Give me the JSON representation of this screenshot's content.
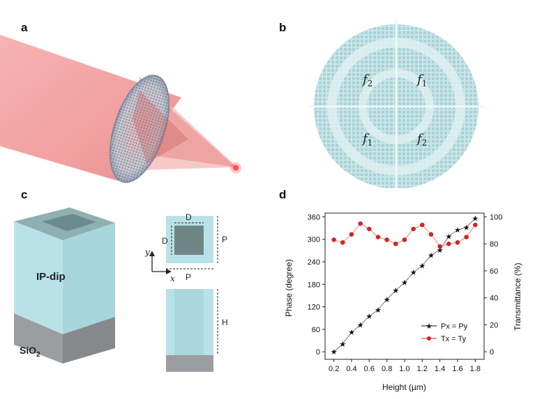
{
  "panels": {
    "a": "a",
    "b": "b",
    "c": "c",
    "d": "d"
  },
  "panel_b": {
    "q_tl": "f2",
    "q_tr": "f1",
    "q_bl": "f1",
    "q_br": "f2"
  },
  "panel_c": {
    "pillar_material": "IP-dip",
    "substrate_material": "SiO2",
    "dim_d": "D",
    "dim_p": "P",
    "dim_h": "H",
    "axis_x": "x",
    "axis_y": "y"
  },
  "colors": {
    "pillar": "#b9e2e8",
    "substrate": "#9b9da0",
    "beam": "#f08c8c",
    "series_phase": "#111111",
    "series_trans": "#e02020"
  },
  "chart_data": {
    "type": "line",
    "xlabel": "Height (µm)",
    "ylabel": "Phase (degree)",
    "y2label": "Transmittance (%)",
    "xlim": [
      0.1,
      1.9
    ],
    "ylim": [
      -20,
      370
    ],
    "y2lim": [
      -5.56,
      102.78
    ],
    "xticks": [
      "0.2",
      "0.4",
      "0.6",
      "0.8",
      "1.0",
      "1.2",
      "1.4",
      "1.6",
      "1.8"
    ],
    "xtick_values": [
      0.2,
      0.4,
      0.6,
      0.8,
      1.0,
      1.2,
      1.4,
      1.6,
      1.8
    ],
    "yticks": [
      "0",
      "60",
      "120",
      "180",
      "240",
      "300",
      "360"
    ],
    "ytick_values": [
      0,
      60,
      120,
      180,
      240,
      300,
      360
    ],
    "y2ticks": [
      "0",
      "20",
      "40",
      "60",
      "80",
      "100"
    ],
    "y2tick_values": [
      0,
      20,
      40,
      60,
      80,
      100
    ],
    "x": [
      0.2,
      0.3,
      0.4,
      0.5,
      0.6,
      0.7,
      0.8,
      0.9,
      1.0,
      1.1,
      1.2,
      1.3,
      1.4,
      1.5,
      1.6,
      1.7,
      1.8
    ],
    "series": [
      {
        "name": "Px = Py",
        "axis": "left",
        "values": [
          0,
          21,
          52,
          72,
          95,
          112,
          140,
          164,
          185,
          212,
          230,
          258,
          272,
          308,
          325,
          332,
          356
        ]
      },
      {
        "name": "Tx = Ty",
        "axis": "right",
        "values": [
          83,
          81,
          87,
          95,
          91,
          85,
          83,
          80,
          83,
          91,
          94,
          87,
          78,
          80,
          81,
          85,
          94
        ]
      }
    ],
    "legend_position": "lower-right"
  }
}
